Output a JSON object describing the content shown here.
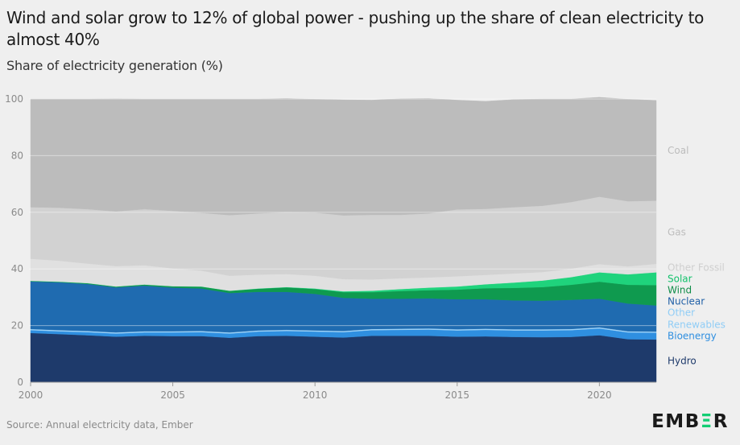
{
  "header": {
    "title": "Wind and solar grow to 12% of global power - pushing up the share of clean electricity to almost 40%",
    "subtitle": "Share of electricity generation (%)"
  },
  "footer": {
    "source": "Source: Annual electricity data, Ember",
    "logo_pre": "EMB",
    "logo_accent": "Ξ",
    "logo_post": "R"
  },
  "chart_data": {
    "type": "area",
    "stacked": true,
    "x": [
      2000,
      2001,
      2002,
      2003,
      2004,
      2005,
      2006,
      2007,
      2008,
      2009,
      2010,
      2011,
      2012,
      2013,
      2014,
      2015,
      2016,
      2017,
      2018,
      2019,
      2020,
      2021,
      2022
    ],
    "xlim": [
      2000,
      2022
    ],
    "ylim": [
      0,
      100
    ],
    "xticks": [
      2000,
      2005,
      2010,
      2015,
      2020
    ],
    "yticks": [
      0,
      20,
      40,
      60,
      80,
      100
    ],
    "grid": true,
    "legend": "right, labels at series end",
    "series": [
      {
        "name": "Hydro",
        "color": "#1e3a6b",
        "label_color": "#1e3a6b",
        "values": [
          17.4,
          17.0,
          16.6,
          16.1,
          16.4,
          16.3,
          16.3,
          15.7,
          16.3,
          16.4,
          16.1,
          15.8,
          16.4,
          16.4,
          16.4,
          16.1,
          16.2,
          16.0,
          15.9,
          16.0,
          16.6,
          15.2,
          15.1
        ]
      },
      {
        "name": "Bioenergy",
        "color": "#2f8fe0",
        "label_color": "#2f8fe0",
        "values": [
          1.0,
          1.0,
          1.1,
          1.1,
          1.2,
          1.3,
          1.4,
          1.5,
          1.6,
          1.7,
          1.8,
          1.9,
          2.0,
          2.1,
          2.2,
          2.2,
          2.3,
          2.3,
          2.4,
          2.4,
          2.4,
          2.4,
          2.4
        ]
      },
      {
        "name": "Other Renewables",
        "color": "#9fd3f7",
        "label_color": "#90cdf6",
        "values": [
          0.4,
          0.4,
          0.4,
          0.4,
          0.4,
          0.4,
          0.4,
          0.4,
          0.4,
          0.4,
          0.4,
          0.4,
          0.4,
          0.4,
          0.4,
          0.4,
          0.4,
          0.4,
          0.4,
          0.4,
          0.4,
          0.4,
          0.4
        ]
      },
      {
        "name": "Nuclear",
        "color": "#1f6bb0",
        "label_color": "#1f5fa6",
        "values": [
          16.8,
          16.9,
          16.6,
          15.9,
          16.1,
          15.4,
          15.0,
          13.9,
          13.6,
          13.4,
          12.9,
          11.7,
          10.7,
          10.6,
          10.6,
          10.6,
          10.4,
          10.2,
          10.1,
          10.3,
          10.1,
          9.8,
          9.2
        ]
      },
      {
        "name": "Wind",
        "color": "#0f9a4f",
        "label_color": "#0f8d48",
        "values": [
          0.2,
          0.2,
          0.3,
          0.3,
          0.4,
          0.5,
          0.7,
          0.8,
          1.1,
          1.6,
          1.7,
          2.0,
          2.3,
          2.7,
          2.9,
          3.4,
          3.9,
          4.4,
          4.8,
          5.3,
          6.0,
          6.6,
          7.2
        ]
      },
      {
        "name": "Solar",
        "color": "#1fd37c",
        "label_color": "#13c26c",
        "values": [
          0.0,
          0.0,
          0.0,
          0.0,
          0.0,
          0.0,
          0.0,
          0.0,
          0.1,
          0.1,
          0.2,
          0.3,
          0.5,
          0.7,
          0.9,
          1.1,
          1.4,
          1.9,
          2.3,
          2.7,
          3.3,
          3.7,
          4.5
        ]
      },
      {
        "name": "Other Fossil",
        "color": "#e0e0e0",
        "label_color": "#cfcfcf",
        "values": [
          7.8,
          7.4,
          6.9,
          7.2,
          6.8,
          6.3,
          5.6,
          5.3,
          4.9,
          4.6,
          4.5,
          4.3,
          4.0,
          3.8,
          3.6,
          3.6,
          3.3,
          3.2,
          3.0,
          3.0,
          2.9,
          2.8,
          3.0
        ]
      },
      {
        "name": "Gas",
        "color": "#d2d2d2",
        "label_color": "#bdbdbd",
        "values": [
          18.2,
          18.7,
          19.2,
          19.3,
          19.8,
          20.3,
          20.4,
          21.4,
          21.6,
          21.9,
          22.3,
          22.5,
          22.8,
          22.4,
          22.6,
          23.6,
          23.3,
          23.4,
          23.4,
          23.5,
          23.8,
          23.0,
          22.3
        ]
      },
      {
        "name": "Coal",
        "color": "#bcbcbc",
        "label_color": "#bcbcbc",
        "values": [
          38.2,
          38.4,
          38.9,
          39.8,
          38.9,
          39.5,
          40.2,
          41.0,
          40.4,
          40.1,
          40.0,
          40.8,
          40.5,
          41.0,
          40.6,
          38.6,
          38.0,
          38.0,
          37.7,
          36.4,
          35.1,
          36.0,
          35.4
        ]
      }
    ]
  }
}
